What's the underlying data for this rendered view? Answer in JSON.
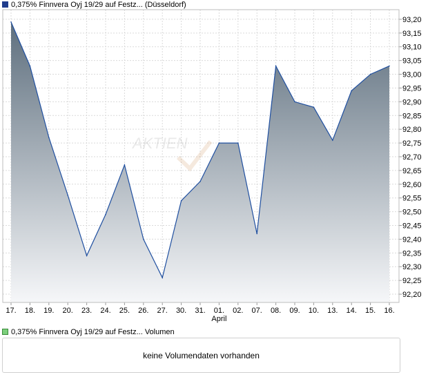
{
  "legend": {
    "price_label": "0,375% Finnvera Oyj 19/29 auf Festz... (Düsseldorf)",
    "volume_label": "0,375% Finnvera Oyj 19/29 auf Festz... Volumen",
    "price_color": "#1f3c8c",
    "volume_color": "#7ccf7c"
  },
  "volume": {
    "message": "keine Volumendaten vorhanden"
  },
  "watermark": "AKTIEN",
  "chart_data": {
    "type": "area",
    "categories": [
      "17.",
      "18.",
      "19.",
      "20.",
      "23.",
      "24.",
      "25.",
      "26.",
      "27.",
      "30.",
      "31.",
      "01.",
      "02.",
      "07.",
      "08.",
      "09.",
      "10.",
      "13.",
      "14.",
      "15.",
      "16."
    ],
    "month_label": "April",
    "month_label_index": 11,
    "series": [
      {
        "values": [
          93.19,
          93.03,
          92.77,
          92.56,
          92.34,
          92.49,
          92.67,
          92.4,
          92.26,
          92.54,
          92.61,
          92.75,
          92.75,
          92.42,
          93.03,
          92.9,
          92.88,
          92.76,
          92.94,
          93.0,
          93.03
        ]
      }
    ],
    "yticks": [
      "93,20",
      "93,15",
      "93,10",
      "93,05",
      "93,00",
      "92,95",
      "92,90",
      "92,85",
      "92,80",
      "92,75",
      "92,70",
      "92,65",
      "92,60",
      "92,55",
      "92,50",
      "92,45",
      "92,40",
      "92,35",
      "92,30",
      "92,25",
      "92,20"
    ],
    "ylim": [
      92.17,
      93.235
    ],
    "grid": true,
    "line_color": "#1f4fa0",
    "fill_top_color": "#5e6f7e",
    "fill_bottom_color": "#f6f7f9"
  }
}
